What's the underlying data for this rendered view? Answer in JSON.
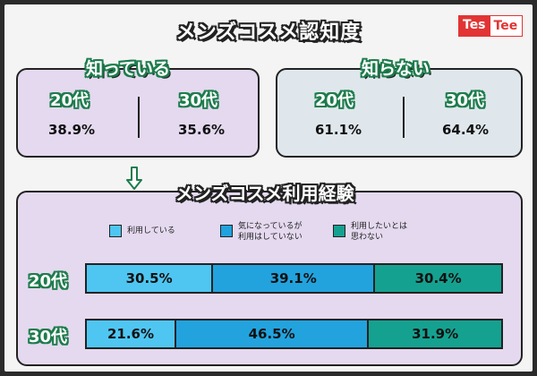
{
  "title": "メンズコスメ認知度",
  "logo": {
    "part1": "Tes",
    "part2": "Tee"
  },
  "awareness": {
    "know": {
      "title": "知っている",
      "groups": [
        {
          "age": "20代",
          "value": "38.9%"
        },
        {
          "age": "30代",
          "value": "35.6%"
        }
      ]
    },
    "unknown": {
      "title": "知らない",
      "groups": [
        {
          "age": "20代",
          "value": "61.1%"
        },
        {
          "age": "30代",
          "value": "64.4%"
        }
      ]
    }
  },
  "arrow_icon": "down-arrow-icon",
  "experience": {
    "title": "メンズコスメ利用経験",
    "legend": [
      {
        "label": "利用している",
        "color": "#4fc6f2"
      },
      {
        "label": "気になっているが\n利用はしていない",
        "color": "#22a3de"
      },
      {
        "label": "利用したいとは\n思わない",
        "color": "#15a190"
      }
    ]
  },
  "chart_data": {
    "type": "bar",
    "stacked": true,
    "orientation": "horizontal",
    "title": "メンズコスメ利用経験",
    "categories": [
      "20代",
      "30代"
    ],
    "series": [
      {
        "name": "利用している",
        "values": [
          30.5,
          21.6
        ],
        "labels": [
          "30.5%",
          "21.6%"
        ],
        "color": "#4fc6f2"
      },
      {
        "name": "気になっているが利用はしていない",
        "values": [
          39.1,
          46.5
        ],
        "labels": [
          "39.1%",
          "46.5%"
        ],
        "color": "#22a3de"
      },
      {
        "name": "利用したいとは思わない",
        "values": [
          30.4,
          31.9
        ],
        "labels": [
          "30.4%",
          "31.9%"
        ],
        "color": "#15a190"
      }
    ],
    "xlim": [
      0,
      100
    ],
    "legend": "top",
    "grid": false
  }
}
